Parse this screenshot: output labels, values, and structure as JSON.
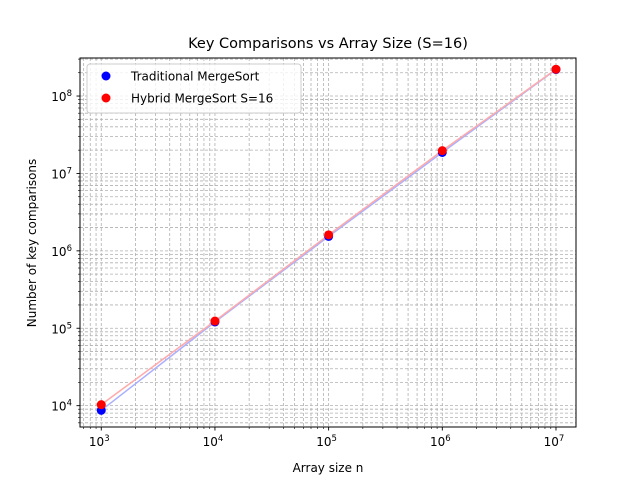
{
  "chart_data": {
    "type": "scatter",
    "title": "Key Comparisons vs Array Size (S=16)",
    "xlabel": "Array size n",
    "ylabel": "Number of key comparisons",
    "x_scale": "log",
    "y_scale": "log",
    "xlim": [
      650,
      15000000
    ],
    "ylim": [
      5300,
      310000000
    ],
    "x_ticks": [
      {
        "value": 1000,
        "base": "10",
        "exp": "3"
      },
      {
        "value": 10000,
        "base": "10",
        "exp": "4"
      },
      {
        "value": 100000,
        "base": "10",
        "exp": "5"
      },
      {
        "value": 1000000,
        "base": "10",
        "exp": "6"
      },
      {
        "value": 10000000,
        "base": "10",
        "exp": "7"
      }
    ],
    "y_ticks": [
      {
        "value": 10000,
        "base": "10",
        "exp": "4"
      },
      {
        "value": 100000,
        "base": "10",
        "exp": "5"
      },
      {
        "value": 1000000,
        "base": "10",
        "exp": "6"
      },
      {
        "value": 10000000,
        "base": "10",
        "exp": "7"
      },
      {
        "value": 100000000,
        "base": "10",
        "exp": "8"
      }
    ],
    "grid": true,
    "legend_position": "top-left",
    "series": [
      {
        "name": "Traditional MergeSort",
        "color": "#0000ff",
        "line_color": "#aab0ff",
        "x": [
          1000,
          10000,
          100000,
          1000000,
          10000000
        ],
        "y": [
          8700,
          120500,
          1537000,
          18670000,
          220100000
        ]
      },
      {
        "name": "Hybrid MergeSort S=16",
        "color": "#ff0000",
        "line_color": "#ffaaaa",
        "x": [
          1000,
          10000,
          100000,
          1000000,
          10000000
        ],
        "y": [
          10300,
          124000,
          1610000,
          19700000,
          222000000
        ]
      }
    ]
  }
}
